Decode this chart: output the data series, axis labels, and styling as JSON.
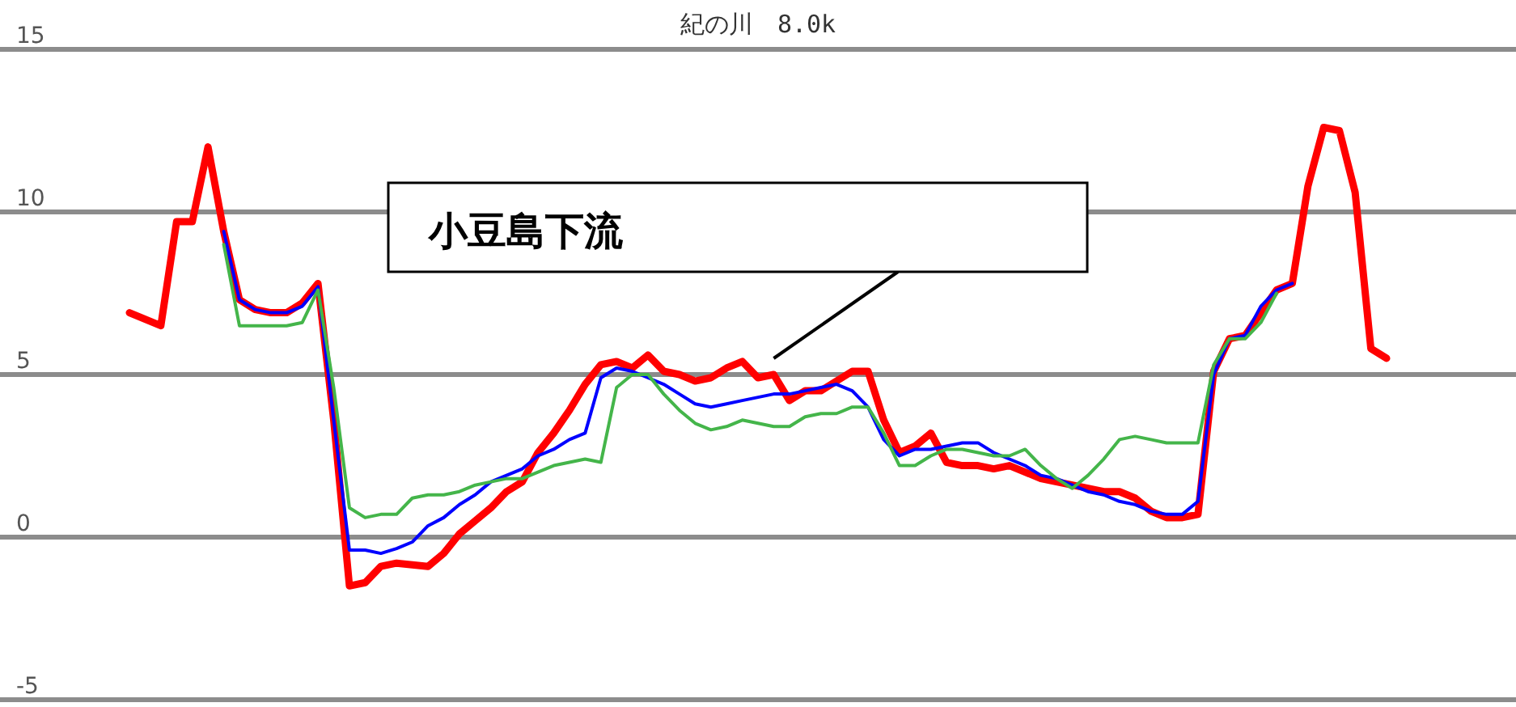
{
  "chart_data": {
    "type": "line",
    "title": "紀の川　8.0k",
    "annotations": [
      "小豆島下流"
    ],
    "categories": [
      null,
      null,
      null,
      null,
      null,
      null,
      null,
      null,
      null,
      null,
      null,
      null,
      null,
      null,
      null,
      null,
      null,
      null,
      null,
      null,
      null,
      null,
      null,
      null,
      null,
      null,
      null,
      null,
      null,
      null,
      null,
      null,
      null,
      null,
      null,
      null,
      null,
      null,
      null,
      null,
      null,
      null,
      null,
      null,
      null,
      null,
      null,
      null,
      null,
      null,
      null,
      null,
      null,
      null,
      null,
      null,
      null,
      null,
      null,
      null,
      null,
      null,
      null,
      null,
      null,
      null,
      null,
      null,
      null,
      null,
      null,
      null,
      null,
      null,
      null,
      null,
      null,
      null,
      null,
      null,
      null
    ],
    "series": [
      {
        "color": "#ff0000",
        "values": [
          6.9,
          6.7,
          6.5,
          9.7,
          9.7,
          12.0,
          9.4,
          7.3,
          7.0,
          6.9,
          6.9,
          7.2,
          7.8,
          3.6,
          -1.5,
          -1.4,
          -0.9,
          -0.8,
          -0.85,
          -0.9,
          -0.5,
          0.1,
          0.5,
          0.9,
          1.4,
          1.7,
          2.6,
          3.2,
          3.9,
          4.7,
          5.3,
          5.4,
          5.2,
          5.6,
          5.1,
          5.0,
          4.8,
          4.9,
          5.2,
          5.4,
          4.9,
          5.0,
          4.2,
          4.5,
          4.5,
          4.8,
          5.1,
          5.1,
          3.6,
          2.6,
          2.8,
          3.2,
          2.3,
          2.2,
          2.2,
          2.1,
          2.2,
          2.0,
          1.8,
          1.7,
          1.6,
          1.5,
          1.4,
          1.4,
          1.2,
          0.8,
          0.6,
          0.6,
          0.7,
          5.1,
          6.1,
          6.2,
          6.9,
          7.6,
          7.8,
          10.8,
          12.6,
          12.5,
          10.6,
          5.8,
          5.5
        ]
      },
      {
        "color": "#0000ff",
        "values": [
          null,
          null,
          null,
          null,
          null,
          null,
          9.4,
          7.3,
          7.0,
          6.9,
          6.9,
          7.1,
          7.7,
          3.6,
          -0.4,
          -0.4,
          -0.5,
          -0.35,
          -0.15,
          0.35,
          0.6,
          1.0,
          1.3,
          1.7,
          1.9,
          2.1,
          2.5,
          2.7,
          3.0,
          3.2,
          4.9,
          5.2,
          5.1,
          4.9,
          4.7,
          4.4,
          4.1,
          4.0,
          4.1,
          4.2,
          4.3,
          4.4,
          4.4,
          4.5,
          4.6,
          4.7,
          4.5,
          4.0,
          3.0,
          2.5,
          2.7,
          2.7,
          2.8,
          2.9,
          2.9,
          2.6,
          2.4,
          2.2,
          1.9,
          1.8,
          1.6,
          1.4,
          1.3,
          1.1,
          1.0,
          0.8,
          0.7,
          0.7,
          1.1,
          5.0,
          6.1,
          6.2,
          7.1,
          7.6,
          7.8,
          null,
          null,
          null,
          null,
          null,
          null
        ]
      },
      {
        "color": "#44b54a",
        "values": [
          null,
          null,
          null,
          null,
          null,
          null,
          9.0,
          6.5,
          6.5,
          6.5,
          6.5,
          6.6,
          7.6,
          4.6,
          0.9,
          0.6,
          0.7,
          0.7,
          1.2,
          1.3,
          1.3,
          1.4,
          1.6,
          1.7,
          1.8,
          1.8,
          2.0,
          2.2,
          2.3,
          2.4,
          2.3,
          4.6,
          5.0,
          5.0,
          4.4,
          3.9,
          3.5,
          3.3,
          3.4,
          3.6,
          3.5,
          3.4,
          3.4,
          3.7,
          3.8,
          3.8,
          4.0,
          4.0,
          3.2,
          2.2,
          2.2,
          2.5,
          2.7,
          2.7,
          2.6,
          2.5,
          2.5,
          2.7,
          2.2,
          1.8,
          1.5,
          1.9,
          2.4,
          3.0,
          3.1,
          3.0,
          2.9,
          2.9,
          2.9,
          5.3,
          6.1,
          6.1,
          6.6,
          7.5,
          null,
          null,
          null,
          null,
          null,
          null,
          null
        ]
      }
    ],
    "ylim": [
      -5,
      15
    ],
    "yticks": [
      -5,
      0,
      5,
      10,
      15
    ],
    "grid": "y",
    "marker": "none",
    "line_style": "solid"
  }
}
